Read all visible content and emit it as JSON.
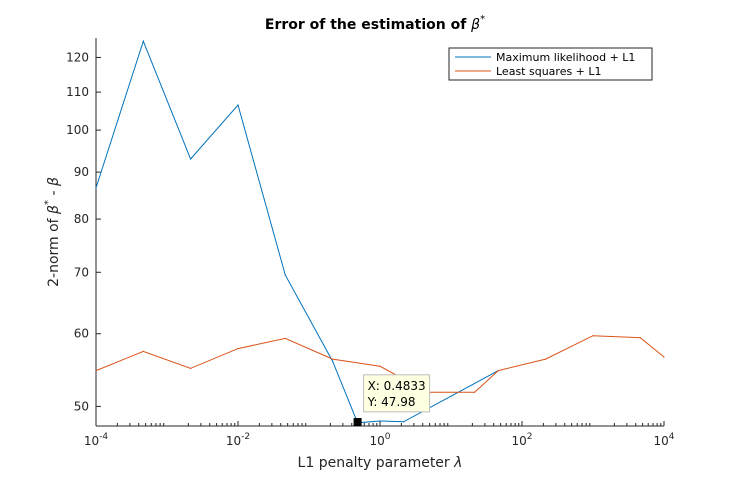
{
  "chart_data": {
    "type": "line",
    "title_prefix": "Error of the estimation of ",
    "title_symbol": "β",
    "title_superscript": "*",
    "xlabel_prefix": "L1 penalty parameter ",
    "xlabel_symbol": "λ",
    "ylabel_prefix": "2-norm of ",
    "ylabel_symbol_a": "β",
    "ylabel_superscript": "*",
    "ylabel_mid": " - ",
    "ylabel_symbol_b": "β",
    "x_scale": "log",
    "y_scale": "log",
    "xlim": [
      0.0001,
      10000
    ],
    "ylim": [
      47.6,
      126
    ],
    "x_ticks": [
      {
        "value": 0.0001,
        "base": "10",
        "exp": "-4"
      },
      {
        "value": 0.01,
        "base": "10",
        "exp": "-2"
      },
      {
        "value": 1,
        "base": "10",
        "exp": "0"
      },
      {
        "value": 100,
        "base": "10",
        "exp": "2"
      },
      {
        "value": 10000,
        "base": "10",
        "exp": "4"
      }
    ],
    "y_ticks": [
      {
        "value": 50,
        "label": "50"
      },
      {
        "value": 60,
        "label": "60"
      },
      {
        "value": 70,
        "label": "70"
      },
      {
        "value": 80,
        "label": "80"
      },
      {
        "value": 90,
        "label": "90"
      },
      {
        "value": 100,
        "label": "100"
      },
      {
        "value": 110,
        "label": "110"
      },
      {
        "value": 120,
        "label": "120"
      }
    ],
    "grid": false,
    "legend_position": "top-right",
    "series": [
      {
        "name": "Maximum likelihood + L1",
        "color": "#0072bd",
        "x": [
          0.0001,
          0.000464,
          0.00215,
          0.01,
          0.0464,
          0.215,
          0.4833,
          1,
          2.15,
          10,
          46.4
        ],
        "y": [
          86.5,
          125,
          93,
          106.5,
          69.5,
          56,
          47.98,
          48.2,
          48.1,
          51.3,
          54.7
        ]
      },
      {
        "name": "Least squares + L1",
        "color": "#d95319",
        "x": [
          0.0001,
          0.000464,
          0.00215,
          0.01,
          0.0464,
          0.215,
          1,
          4.64,
          21.5,
          46.4,
          215,
          1000,
          4640,
          10000
        ],
        "y": [
          54.7,
          57.4,
          55,
          57.8,
          59.3,
          56.3,
          55.3,
          51.8,
          51.8,
          54.7,
          56.3,
          59.7,
          59.4,
          56.6
        ]
      }
    ],
    "datatip": {
      "x_label": "X: 0.4833",
      "y_label": "Y: 47.98",
      "x": 0.4833,
      "y": 47.98
    }
  }
}
